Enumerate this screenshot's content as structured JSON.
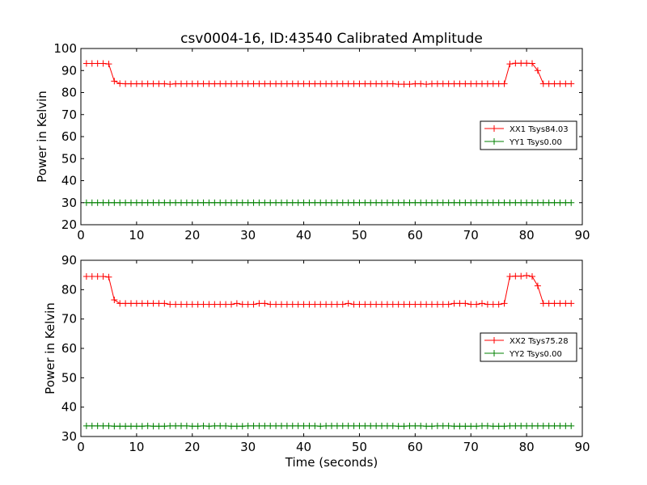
{
  "figure": {
    "title": "csv0004-16, ID:43540 Calibrated Amplitude",
    "xlabel": "Time (seconds)"
  },
  "chart_data": [
    {
      "type": "line",
      "title": "csv0004-16, ID:43540 Calibrated Amplitude",
      "xlabel": "",
      "ylabel": "Power in Kelvin",
      "xlim": [
        0,
        90
      ],
      "ylim": [
        20,
        100
      ],
      "xticks": [
        0,
        10,
        20,
        30,
        40,
        50,
        60,
        70,
        80,
        90
      ],
      "yticks": [
        20,
        30,
        40,
        50,
        60,
        70,
        80,
        90,
        100
      ],
      "legend_position": "center-right",
      "series": [
        {
          "name": "XX1 Tsys84.03",
          "color": "#ff0000",
          "marker": "+",
          "x": [
            1,
            2,
            3,
            4,
            5,
            6,
            7,
            8,
            9,
            10,
            11,
            12,
            13,
            14,
            15,
            16,
            17,
            18,
            19,
            20,
            21,
            22,
            23,
            24,
            25,
            26,
            27,
            28,
            29,
            30,
            31,
            32,
            33,
            34,
            35,
            36,
            37,
            38,
            39,
            40,
            41,
            42,
            43,
            44,
            45,
            46,
            47,
            48,
            49,
            50,
            51,
            52,
            53,
            54,
            55,
            56,
            57,
            58,
            59,
            60,
            61,
            62,
            63,
            64,
            65,
            66,
            67,
            68,
            69,
            70,
            71,
            72,
            73,
            74,
            75,
            76,
            77,
            78,
            79,
            80,
            81,
            82,
            83,
            84,
            85,
            86,
            87,
            88
          ],
          "y": [
            93.2,
            93.2,
            93.2,
            93.2,
            93.0,
            85.2,
            84.1,
            84.0,
            84.0,
            84.0,
            84.0,
            84.0,
            84.0,
            84.0,
            84.0,
            83.8,
            84.0,
            84.0,
            84.0,
            84.0,
            84.0,
            84.0,
            84.0,
            84.0,
            84.0,
            84.0,
            84.0,
            84.0,
            84.0,
            84.0,
            84.0,
            84.0,
            84.0,
            84.0,
            84.0,
            84.0,
            84.0,
            84.0,
            84.0,
            84.0,
            84.0,
            84.0,
            84.0,
            84.0,
            84.0,
            84.0,
            84.0,
            84.0,
            84.0,
            84.0,
            84.0,
            84.0,
            84.0,
            84.0,
            84.0,
            84.0,
            83.8,
            83.8,
            83.8,
            84.0,
            84.0,
            83.8,
            84.0,
            84.0,
            84.0,
            84.0,
            84.0,
            84.0,
            84.0,
            84.0,
            84.0,
            84.0,
            84.0,
            84.0,
            84.0,
            84.0,
            93.0,
            93.3,
            93.3,
            93.3,
            93.2,
            90.0,
            84.0,
            84.0,
            84.0,
            84.0,
            84.0,
            84.0
          ]
        },
        {
          "name": "YY1 Tsys0.00",
          "color": "#008000",
          "marker": "+",
          "x": [
            1,
            2,
            3,
            4,
            5,
            6,
            7,
            8,
            9,
            10,
            11,
            12,
            13,
            14,
            15,
            16,
            17,
            18,
            19,
            20,
            21,
            22,
            23,
            24,
            25,
            26,
            27,
            28,
            29,
            30,
            31,
            32,
            33,
            34,
            35,
            36,
            37,
            38,
            39,
            40,
            41,
            42,
            43,
            44,
            45,
            46,
            47,
            48,
            49,
            50,
            51,
            52,
            53,
            54,
            55,
            56,
            57,
            58,
            59,
            60,
            61,
            62,
            63,
            64,
            65,
            66,
            67,
            68,
            69,
            70,
            71,
            72,
            73,
            74,
            75,
            76,
            77,
            78,
            79,
            80,
            81,
            82,
            83,
            84,
            85,
            86,
            87,
            88
          ],
          "y": [
            30,
            30,
            30,
            30,
            30,
            30,
            30,
            30,
            30,
            30,
            30,
            30,
            30,
            30,
            30,
            30,
            30,
            30,
            30,
            30,
            30,
            30,
            30,
            30,
            30,
            30,
            30,
            30,
            30,
            30,
            30,
            30,
            30,
            30,
            30,
            30,
            30,
            30,
            30,
            30,
            30,
            30,
            30,
            30,
            30,
            30,
            30,
            30,
            30,
            30,
            30,
            30,
            30,
            30,
            30,
            30,
            30,
            30,
            30,
            30,
            30,
            30,
            30,
            30,
            30,
            30,
            30,
            30,
            30,
            30,
            30,
            30,
            30,
            30,
            30,
            30,
            30,
            30,
            30,
            30,
            30,
            30,
            30,
            30,
            30,
            30,
            30,
            30
          ]
        }
      ]
    },
    {
      "type": "line",
      "title": "",
      "xlabel": "Time (seconds)",
      "ylabel": "Power in Kelvin",
      "xlim": [
        0,
        90
      ],
      "ylim": [
        30,
        90
      ],
      "xticks": [
        0,
        10,
        20,
        30,
        40,
        50,
        60,
        70,
        80,
        90
      ],
      "yticks": [
        30,
        40,
        50,
        60,
        70,
        80,
        90
      ],
      "legend_position": "center-right",
      "series": [
        {
          "name": "XX2 Tsys75.28",
          "color": "#ff0000",
          "marker": "+",
          "x": [
            1,
            2,
            3,
            4,
            5,
            6,
            7,
            8,
            9,
            10,
            11,
            12,
            13,
            14,
            15,
            16,
            17,
            18,
            19,
            20,
            21,
            22,
            23,
            24,
            25,
            26,
            27,
            28,
            29,
            30,
            31,
            32,
            33,
            34,
            35,
            36,
            37,
            38,
            39,
            40,
            41,
            42,
            43,
            44,
            45,
            46,
            47,
            48,
            49,
            50,
            51,
            52,
            53,
            54,
            55,
            56,
            57,
            58,
            59,
            60,
            61,
            62,
            63,
            64,
            65,
            66,
            67,
            68,
            69,
            70,
            71,
            72,
            73,
            74,
            75,
            76,
            77,
            78,
            79,
            80,
            81,
            82,
            83,
            84,
            85,
            86,
            87,
            88
          ],
          "y": [
            84.5,
            84.5,
            84.5,
            84.5,
            84.3,
            76.5,
            75.3,
            75.3,
            75.3,
            75.3,
            75.3,
            75.3,
            75.3,
            75.3,
            75.3,
            75.0,
            75.0,
            75.0,
            75.0,
            75.0,
            75.0,
            75.0,
            75.0,
            75.0,
            75.0,
            75.0,
            75.0,
            75.3,
            75.0,
            75.0,
            75.0,
            75.3,
            75.3,
            75.0,
            75.0,
            75.0,
            75.0,
            75.0,
            75.0,
            75.0,
            75.0,
            75.0,
            75.0,
            75.0,
            75.0,
            75.0,
            75.0,
            75.3,
            75.0,
            75.0,
            75.0,
            75.0,
            75.0,
            75.0,
            75.0,
            75.0,
            75.0,
            75.0,
            75.0,
            75.0,
            75.0,
            75.0,
            75.0,
            75.0,
            75.0,
            75.0,
            75.3,
            75.3,
            75.3,
            75.0,
            75.0,
            75.3,
            75.0,
            75.0,
            75.0,
            75.3,
            84.5,
            84.6,
            84.6,
            84.8,
            84.5,
            81.3,
            75.3,
            75.3,
            75.3,
            75.3,
            75.3,
            75.3
          ]
        },
        {
          "name": "YY2 Tsys0.00",
          "color": "#008000",
          "marker": "+",
          "x": [
            1,
            2,
            3,
            4,
            5,
            6,
            7,
            8,
            9,
            10,
            11,
            12,
            13,
            14,
            15,
            16,
            17,
            18,
            19,
            20,
            21,
            22,
            23,
            24,
            25,
            26,
            27,
            28,
            29,
            30,
            31,
            32,
            33,
            34,
            35,
            36,
            37,
            38,
            39,
            40,
            41,
            42,
            43,
            44,
            45,
            46,
            47,
            48,
            49,
            50,
            51,
            52,
            53,
            54,
            55,
            56,
            57,
            58,
            59,
            60,
            61,
            62,
            63,
            64,
            65,
            66,
            67,
            68,
            69,
            70,
            71,
            72,
            73,
            74,
            75,
            76,
            77,
            78,
            79,
            80,
            81,
            82,
            83,
            84,
            85,
            86,
            87,
            88
          ],
          "y": [
            33.6,
            33.6,
            33.6,
            33.6,
            33.6,
            33.5,
            33.5,
            33.5,
            33.5,
            33.5,
            33.5,
            33.6,
            33.5,
            33.5,
            33.5,
            33.6,
            33.6,
            33.6,
            33.6,
            33.5,
            33.5,
            33.6,
            33.5,
            33.6,
            33.6,
            33.6,
            33.5,
            33.5,
            33.5,
            33.6,
            33.6,
            33.6,
            33.6,
            33.6,
            33.6,
            33.6,
            33.6,
            33.6,
            33.6,
            33.6,
            33.6,
            33.6,
            33.5,
            33.6,
            33.6,
            33.6,
            33.6,
            33.6,
            33.6,
            33.6,
            33.6,
            33.6,
            33.6,
            33.6,
            33.6,
            33.6,
            33.5,
            33.5,
            33.6,
            33.6,
            33.6,
            33.5,
            33.5,
            33.6,
            33.6,
            33.6,
            33.5,
            33.5,
            33.5,
            33.5,
            33.5,
            33.6,
            33.6,
            33.5,
            33.5,
            33.5,
            33.6,
            33.6,
            33.6,
            33.6,
            33.6,
            33.6,
            33.6,
            33.6,
            33.6,
            33.6,
            33.6,
            33.6
          ]
        }
      ]
    }
  ]
}
